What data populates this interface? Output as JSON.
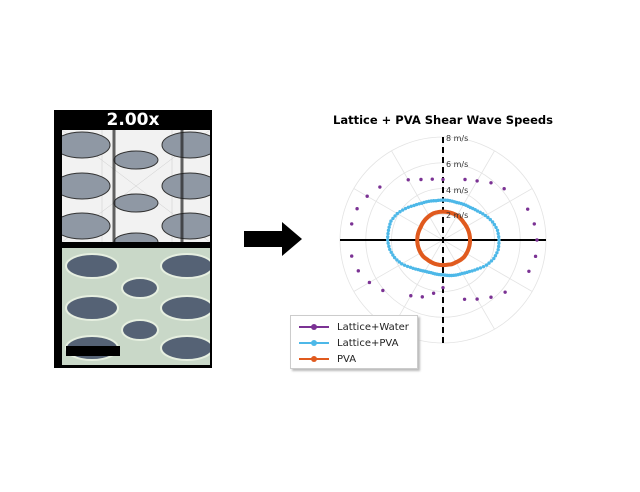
{
  "left_figure": {
    "zoom_label": "2.00x"
  },
  "chart_data": {
    "type": "scatter",
    "subtype": "polar",
    "title": "Lattice + PVA Shear Wave Speeds",
    "radial_ticks": [
      "2 m/s",
      "4 m/s",
      "6 m/s",
      "8 m/s"
    ],
    "radial_tick_values": [
      2,
      4,
      6,
      8
    ],
    "rlim": [
      0,
      8
    ],
    "radial_unit": "m/s",
    "theta_deg": [
      0,
      10,
      20,
      30,
      40,
      50,
      60,
      70,
      80,
      90,
      100,
      110,
      120,
      130,
      140,
      150,
      160,
      170,
      180,
      190,
      200,
      210,
      220,
      230,
      240,
      250,
      260,
      270,
      280,
      290,
      300,
      310,
      320,
      330,
      340,
      350
    ],
    "grid": true,
    "legend_placement": "bottom-left",
    "series": [
      {
        "name": "Lattice+Water",
        "color": "#7b3294",
        "values": [
          7.3,
          7.2,
          7.0,
          6.6,
          6.2,
          5.8,
          5.3,
          5.0,
          4.8,
          4.7,
          4.8,
          5.0,
          5.4,
          5.9,
          6.4,
          6.8,
          7.1,
          7.2,
          7.2,
          7.2,
          7.0,
          6.6,
          6.1,
          5.6,
          5.0,
          4.7,
          4.2,
          3.7,
          4.3,
          4.9,
          5.3,
          5.8,
          6.3,
          6.8,
          7.1,
          7.3
        ]
      },
      {
        "name": "Lattice+PVA",
        "color": "#4db8e8",
        "values": [
          4.35,
          4.3,
          4.1,
          3.8,
          3.5,
          3.3,
          3.2,
          3.1,
          3.1,
          3.1,
          3.1,
          3.2,
          3.3,
          3.5,
          3.8,
          4.1,
          4.3,
          4.3,
          4.3,
          4.2,
          4.0,
          3.7,
          3.3,
          3.0,
          2.8,
          2.7,
          2.7,
          2.7,
          2.8,
          2.9,
          3.0,
          3.2,
          3.5,
          3.9,
          4.2,
          4.35
        ]
      },
      {
        "name": "PVA",
        "color": "#e05a1e",
        "values": [
          2.1,
          2.1,
          2.1,
          2.1,
          2.1,
          2.15,
          2.2,
          2.2,
          2.2,
          2.2,
          2.2,
          2.2,
          2.15,
          2.1,
          2.05,
          2.0,
          2.0,
          2.0,
          2.0,
          2.0,
          2.0,
          2.0,
          2.0,
          1.95,
          1.95,
          1.95,
          1.95,
          1.95,
          1.95,
          2.0,
          2.0,
          2.05,
          2.1,
          2.1,
          2.1,
          2.1
        ]
      }
    ]
  }
}
